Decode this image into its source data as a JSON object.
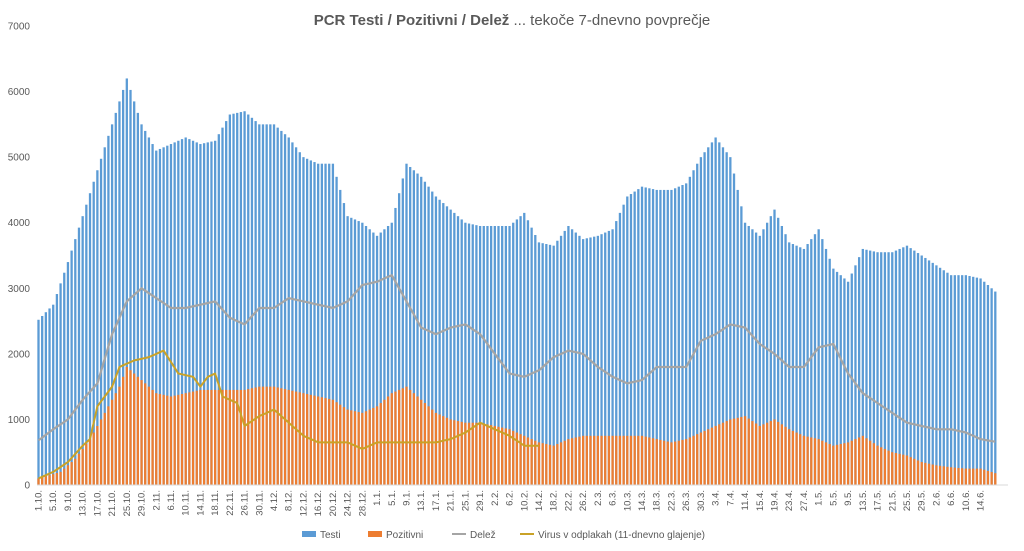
{
  "chart_data": {
    "type": "bar",
    "title_bold": "PCR Testi / Pozitivni / Delež",
    "title_rest": " ... tekoče 7-dnevno povprečje",
    "ylim": [
      0,
      7000
    ],
    "yticks": [
      0,
      1000,
      2000,
      3000,
      4000,
      5000,
      6000,
      7000
    ],
    "xlabels": [
      "1.10.",
      "5.10.",
      "9.10.",
      "13.10.",
      "17.10.",
      "21.10.",
      "25.10.",
      "29.10.",
      "2.11.",
      "6.11.",
      "10.11.",
      "14.11.",
      "18.11.",
      "22.11.",
      "26.11.",
      "30.11.",
      "4.12.",
      "8.12.",
      "12.12.",
      "16.12.",
      "20.12.",
      "24.12.",
      "28.12.",
      "1.1.",
      "5.1.",
      "9.1.",
      "13.1.",
      "17.1.",
      "21.1.",
      "25.1.",
      "29.1.",
      "2.2.",
      "6.2.",
      "10.2.",
      "14.2.",
      "18.2.",
      "22.2.",
      "26.2.",
      "2.3.",
      "6.3.",
      "10.3.",
      "14.3.",
      "18.3.",
      "22.3.",
      "26.3.",
      "30.3.",
      "3.4.",
      "7.4.",
      "11.4.",
      "15.4.",
      "19.4.",
      "23.4.",
      "27.4.",
      "1.5.",
      "5.5.",
      "9.5.",
      "13.5.",
      "17.5.",
      "21.5.",
      "25.5.",
      "29.5.",
      "2.6.",
      "6.6.",
      "10.6.",
      "14.6."
    ],
    "series": [
      {
        "name": "Testi",
        "color": "#5b9bd5",
        "kind": "bar",
        "anchors": [
          [
            0,
            2520
          ],
          [
            4,
            2750
          ],
          [
            8,
            3400
          ],
          [
            12,
            4100
          ],
          [
            16,
            4800
          ],
          [
            20,
            5500
          ],
          [
            24,
            6200
          ],
          [
            28,
            5500
          ],
          [
            32,
            5100
          ],
          [
            36,
            5200
          ],
          [
            40,
            5300
          ],
          [
            44,
            5200
          ],
          [
            48,
            5250
          ],
          [
            52,
            5650
          ],
          [
            56,
            5700
          ],
          [
            60,
            5500
          ],
          [
            64,
            5500
          ],
          [
            68,
            5300
          ],
          [
            72,
            5000
          ],
          [
            76,
            4900
          ],
          [
            80,
            4900
          ],
          [
            84,
            4100
          ],
          [
            88,
            4000
          ],
          [
            92,
            3800
          ],
          [
            96,
            4000
          ],
          [
            100,
            4900
          ],
          [
            104,
            4700
          ],
          [
            108,
            4400
          ],
          [
            112,
            4200
          ],
          [
            116,
            4000
          ],
          [
            120,
            3950
          ],
          [
            124,
            3950
          ],
          [
            128,
            3950
          ],
          [
            132,
            4150
          ],
          [
            136,
            3700
          ],
          [
            140,
            3650
          ],
          [
            144,
            3950
          ],
          [
            148,
            3750
          ],
          [
            152,
            3800
          ],
          [
            156,
            3900
          ],
          [
            160,
            4400
          ],
          [
            164,
            4550
          ],
          [
            168,
            4500
          ],
          [
            172,
            4500
          ],
          [
            176,
            4600
          ],
          [
            180,
            5000
          ],
          [
            184,
            5300
          ],
          [
            188,
            5000
          ],
          [
            192,
            4000
          ],
          [
            196,
            3800
          ],
          [
            200,
            4200
          ],
          [
            204,
            3700
          ],
          [
            208,
            3600
          ],
          [
            212,
            3900
          ],
          [
            216,
            3300
          ],
          [
            220,
            3100
          ],
          [
            224,
            3600
          ],
          [
            228,
            3550
          ],
          [
            232,
            3550
          ],
          [
            236,
            3650
          ],
          [
            240,
            3500
          ],
          [
            244,
            3350
          ],
          [
            248,
            3200
          ],
          [
            252,
            3200
          ],
          [
            256,
            3150
          ],
          [
            260,
            2950
          ]
        ]
      },
      {
        "name": "Pozitivni",
        "color": "#ed7d31",
        "kind": "bar",
        "anchors": [
          [
            0,
            100
          ],
          [
            6,
            200
          ],
          [
            10,
            400
          ],
          [
            14,
            700
          ],
          [
            18,
            1100
          ],
          [
            22,
            1500
          ],
          [
            24,
            1800
          ],
          [
            28,
            1600
          ],
          [
            32,
            1400
          ],
          [
            36,
            1350
          ],
          [
            40,
            1400
          ],
          [
            44,
            1450
          ],
          [
            48,
            1450
          ],
          [
            52,
            1450
          ],
          [
            56,
            1450
          ],
          [
            60,
            1500
          ],
          [
            64,
            1500
          ],
          [
            68,
            1450
          ],
          [
            72,
            1400
          ],
          [
            76,
            1350
          ],
          [
            80,
            1300
          ],
          [
            84,
            1150
          ],
          [
            88,
            1100
          ],
          [
            92,
            1200
          ],
          [
            96,
            1400
          ],
          [
            100,
            1500
          ],
          [
            104,
            1300
          ],
          [
            108,
            1100
          ],
          [
            112,
            1000
          ],
          [
            116,
            950
          ],
          [
            120,
            950
          ],
          [
            124,
            900
          ],
          [
            128,
            850
          ],
          [
            132,
            750
          ],
          [
            136,
            650
          ],
          [
            140,
            600
          ],
          [
            144,
            700
          ],
          [
            148,
            750
          ],
          [
            152,
            750
          ],
          [
            156,
            750
          ],
          [
            160,
            750
          ],
          [
            164,
            750
          ],
          [
            168,
            700
          ],
          [
            172,
            650
          ],
          [
            176,
            700
          ],
          [
            180,
            800
          ],
          [
            184,
            900
          ],
          [
            188,
            1000
          ],
          [
            192,
            1050
          ],
          [
            196,
            900
          ],
          [
            200,
            1000
          ],
          [
            204,
            850
          ],
          [
            208,
            750
          ],
          [
            212,
            700
          ],
          [
            216,
            600
          ],
          [
            220,
            650
          ],
          [
            224,
            750
          ],
          [
            228,
            600
          ],
          [
            232,
            500
          ],
          [
            236,
            450
          ],
          [
            240,
            350
          ],
          [
            244,
            300
          ],
          [
            248,
            270
          ],
          [
            252,
            250
          ],
          [
            256,
            250
          ],
          [
            260,
            180
          ]
        ]
      },
      {
        "name": "Delež",
        "color": "#a5a5a5",
        "kind": "line",
        "anchors": [
          [
            0,
            680
          ],
          [
            4,
            850
          ],
          [
            8,
            1000
          ],
          [
            12,
            1300
          ],
          [
            16,
            1550
          ],
          [
            20,
            2300
          ],
          [
            24,
            2800
          ],
          [
            28,
            3000
          ],
          [
            32,
            2850
          ],
          [
            36,
            2700
          ],
          [
            40,
            2700
          ],
          [
            44,
            2750
          ],
          [
            48,
            2800
          ],
          [
            52,
            2550
          ],
          [
            56,
            2450
          ],
          [
            60,
            2700
          ],
          [
            64,
            2700
          ],
          [
            68,
            2850
          ],
          [
            72,
            2800
          ],
          [
            76,
            2750
          ],
          [
            80,
            2700
          ],
          [
            84,
            2800
          ],
          [
            88,
            3050
          ],
          [
            92,
            3100
          ],
          [
            96,
            3200
          ],
          [
            100,
            2800
          ],
          [
            104,
            2400
          ],
          [
            108,
            2300
          ],
          [
            112,
            2400
          ],
          [
            116,
            2450
          ],
          [
            120,
            2300
          ],
          [
            124,
            2000
          ],
          [
            128,
            1700
          ],
          [
            132,
            1650
          ],
          [
            136,
            1750
          ],
          [
            140,
            1950
          ],
          [
            144,
            2050
          ],
          [
            148,
            2000
          ],
          [
            152,
            1800
          ],
          [
            156,
            1650
          ],
          [
            160,
            1550
          ],
          [
            164,
            1600
          ],
          [
            168,
            1800
          ],
          [
            172,
            1800
          ],
          [
            176,
            1800
          ],
          [
            180,
            2200
          ],
          [
            184,
            2300
          ],
          [
            188,
            2450
          ],
          [
            192,
            2400
          ],
          [
            196,
            2150
          ],
          [
            200,
            2000
          ],
          [
            204,
            1800
          ],
          [
            208,
            1800
          ],
          [
            212,
            2100
          ],
          [
            216,
            2150
          ],
          [
            220,
            1700
          ],
          [
            224,
            1400
          ],
          [
            228,
            1250
          ],
          [
            232,
            1100
          ],
          [
            236,
            950
          ],
          [
            240,
            900
          ],
          [
            244,
            850
          ],
          [
            248,
            850
          ],
          [
            252,
            800
          ],
          [
            256,
            700
          ],
          [
            260,
            660
          ]
        ]
      },
      {
        "name": "Virus v odplakah (11-dnevno glajenje)",
        "color": "#c9a227",
        "kind": "line",
        "anchors": [
          [
            0,
            100
          ],
          [
            4,
            200
          ],
          [
            8,
            350
          ],
          [
            12,
            600
          ],
          [
            14,
            700
          ],
          [
            16,
            1200
          ],
          [
            20,
            1500
          ],
          [
            22,
            1800
          ],
          [
            26,
            1900
          ],
          [
            30,
            1950
          ],
          [
            34,
            2050
          ],
          [
            38,
            1700
          ],
          [
            42,
            1650
          ],
          [
            44,
            1500
          ],
          [
            46,
            1650
          ],
          [
            48,
            1700
          ],
          [
            50,
            1350
          ],
          [
            54,
            1250
          ],
          [
            56,
            900
          ],
          [
            60,
            1050
          ],
          [
            64,
            1150
          ],
          [
            68,
            950
          ],
          [
            72,
            750
          ],
          [
            76,
            650
          ],
          [
            80,
            650
          ],
          [
            84,
            650
          ],
          [
            88,
            550
          ],
          [
            92,
            650
          ],
          [
            96,
            650
          ],
          [
            100,
            650
          ],
          [
            104,
            650
          ],
          [
            108,
            650
          ],
          [
            112,
            700
          ],
          [
            116,
            800
          ],
          [
            120,
            950
          ],
          [
            124,
            850
          ],
          [
            128,
            750
          ],
          [
            132,
            600
          ],
          [
            136,
            600
          ]
        ]
      }
    ]
  }
}
